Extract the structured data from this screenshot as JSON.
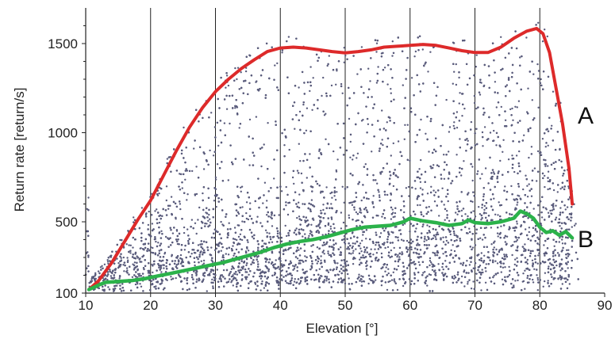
{
  "chart_data": {
    "type": "scatter",
    "title": "",
    "xlabel": "Elevation [°]",
    "ylabel": "Return rate [return/s]",
    "xlim": [
      10,
      90
    ],
    "ylim": [
      100,
      1700
    ],
    "xticks": [
      "10",
      "20",
      "30",
      "40",
      "50",
      "60",
      "70",
      "80",
      "90"
    ],
    "yticks": [
      "100",
      "500",
      "1000",
      "1500"
    ],
    "xtick_values": [
      10,
      20,
      30,
      40,
      50,
      60,
      70,
      80,
      90
    ],
    "ytick_values": [
      100,
      500,
      1000,
      1500
    ],
    "vertical_grid": true,
    "scatter_color": "#5a5c7c",
    "series": [
      {
        "name": "A",
        "color": "#dd2a2a",
        "x": [
          10.5,
          12,
          14,
          16,
          18,
          20,
          22,
          24,
          26,
          28,
          30,
          32,
          34,
          36,
          38,
          40,
          42,
          44,
          46,
          48,
          50,
          52,
          54,
          56,
          58,
          60,
          62,
          64,
          66,
          68,
          70,
          72,
          74,
          76,
          78,
          79.5,
          80.5,
          81.5,
          82.5,
          83.5,
          84.5,
          85
        ],
        "y": [
          120,
          170,
          270,
          390,
          510,
          620,
          760,
          900,
          1030,
          1140,
          1230,
          1300,
          1360,
          1410,
          1455,
          1475,
          1480,
          1475,
          1465,
          1455,
          1448,
          1455,
          1465,
          1480,
          1485,
          1490,
          1495,
          1490,
          1475,
          1460,
          1450,
          1450,
          1480,
          1530,
          1570,
          1585,
          1555,
          1450,
          1250,
          1050,
          800,
          600
        ]
      },
      {
        "name": "B",
        "color": "#2bb24a",
        "x": [
          10.5,
          12,
          13,
          15,
          17,
          19,
          21,
          23,
          25,
          27,
          29,
          31,
          33,
          35,
          37,
          39,
          41,
          43,
          45,
          47,
          49,
          51,
          53,
          55,
          57,
          59,
          60,
          62,
          64,
          66,
          68,
          69,
          70,
          72,
          74,
          76,
          77,
          78,
          79,
          80,
          81,
          82,
          83,
          84,
          85
        ],
        "y": [
          120,
          145,
          160,
          165,
          170,
          180,
          195,
          210,
          225,
          240,
          255,
          270,
          290,
          310,
          330,
          355,
          375,
          390,
          400,
          415,
          435,
          455,
          470,
          475,
          480,
          500,
          520,
          505,
          495,
          480,
          490,
          510,
          495,
          490,
          500,
          520,
          560,
          545,
          520,
          470,
          440,
          450,
          425,
          445,
          410
        ]
      }
    ]
  }
}
